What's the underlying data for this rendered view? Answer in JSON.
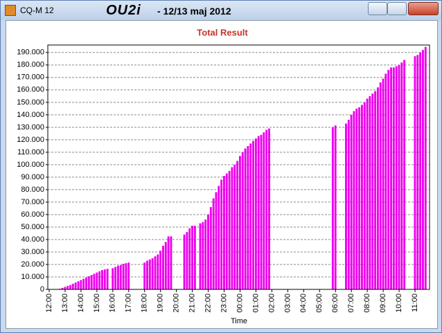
{
  "window": {
    "app_name": "CQ-M 12",
    "call": "OU2i",
    "date": "- 12/13 maj 2012"
  },
  "chart_data": {
    "type": "bar",
    "title": "Total Result",
    "x_label": "Time",
    "color": "#ee00ee",
    "grid": true,
    "categories": [
      "12:00",
      null,
      null,
      null,
      null,
      null,
      "13:00",
      null,
      null,
      null,
      null,
      null,
      "14:00",
      null,
      null,
      null,
      null,
      null,
      "15:00",
      null,
      null,
      null,
      null,
      null,
      "16:00",
      null,
      null,
      null,
      null,
      null,
      "17:00",
      null,
      null,
      null,
      null,
      null,
      "18:00",
      null,
      null,
      null,
      null,
      null,
      "19:00",
      null,
      null,
      null,
      null,
      null,
      "20:00",
      null,
      null,
      null,
      null,
      null,
      "21:00",
      null,
      null,
      null,
      null,
      null,
      "22:00",
      null,
      null,
      null,
      null,
      null,
      "23:00",
      null,
      null,
      null,
      null,
      null,
      "00:00",
      null,
      null,
      null,
      null,
      null,
      "01:00",
      null,
      null,
      null,
      null,
      null,
      "02:00",
      null,
      null,
      null,
      null,
      null,
      "03:00",
      null,
      null,
      null,
      null,
      null,
      "04:00",
      null,
      null,
      null,
      null,
      null,
      "05:00",
      null,
      null,
      null,
      null,
      null,
      "06:00",
      null,
      null,
      null,
      null,
      null,
      "07:00",
      null,
      null,
      null,
      null,
      null,
      "08:00",
      null,
      null,
      null,
      null,
      null,
      "09:00",
      null,
      null,
      null,
      null,
      null,
      "10:00",
      null,
      null,
      null,
      null,
      null,
      "11:00",
      null,
      null,
      null,
      null,
      null
    ],
    "values": [
      null,
      null,
      null,
      null,
      500,
      1200,
      2000,
      2800,
      3500,
      4500,
      5500,
      6500,
      7500,
      8500,
      9500,
      10500,
      11500,
      12500,
      13500,
      14500,
      15500,
      16000,
      16500,
      null,
      17000,
      18000,
      19000,
      19500,
      20500,
      21000,
      21500,
      null,
      null,
      null,
      null,
      null,
      21500,
      23000,
      24000,
      25000,
      26500,
      28000,
      31000,
      35000,
      38000,
      42500,
      42500,
      null,
      null,
      null,
      null,
      44000,
      46000,
      49000,
      51000,
      51000,
      null,
      53000,
      54000,
      56000,
      60000,
      66000,
      73000,
      78000,
      83000,
      88000,
      91000,
      93000,
      95000,
      98000,
      100000,
      103000,
      107000,
      110000,
      113000,
      115000,
      117000,
      119000,
      121000,
      123000,
      124000,
      126000,
      128000,
      129000,
      null,
      null,
      null,
      null,
      null,
      null,
      null,
      null,
      null,
      null,
      null,
      null,
      null,
      null,
      null,
      null,
      null,
      null,
      null,
      null,
      null,
      null,
      null,
      130000,
      131500,
      null,
      null,
      null,
      133000,
      136000,
      140000,
      143000,
      145000,
      146000,
      148000,
      150000,
      153000,
      155000,
      157000,
      159000,
      162000,
      166000,
      169000,
      173000,
      176000,
      178000,
      178000,
      179000,
      180000,
      182000,
      184000,
      null,
      null,
      null,
      187000,
      188000,
      190000,
      192000,
      194500,
      null
    ],
    "ylim": [
      0,
      196000
    ],
    "yticks": [
      0,
      {
        "value": 10000,
        "label": "10.000"
      },
      {
        "value": 20000,
        "label": "20.000"
      },
      {
        "value": 30000,
        "label": "30.000"
      },
      {
        "value": 40000,
        "label": "40.000"
      },
      {
        "value": 50000,
        "label": "50.000"
      },
      {
        "value": 60000,
        "label": "60.000"
      },
      {
        "value": 70000,
        "label": "70.000"
      },
      {
        "value": 80000,
        "label": "80.000"
      },
      {
        "value": 90000,
        "label": "90.000"
      },
      {
        "value": 100000,
        "label": "100.000"
      },
      {
        "value": 110000,
        "label": "110.000"
      },
      {
        "value": 120000,
        "label": "120.000"
      },
      {
        "value": 130000,
        "label": "130.000"
      },
      {
        "value": 140000,
        "label": "140.000"
      },
      {
        "value": 150000,
        "label": "150.000"
      },
      {
        "value": 160000,
        "label": "160.000"
      },
      {
        "value": 170000,
        "label": "170.000"
      },
      {
        "value": 180000,
        "label": "180.000"
      },
      {
        "value": 190000,
        "label": "190.000"
      }
    ]
  }
}
